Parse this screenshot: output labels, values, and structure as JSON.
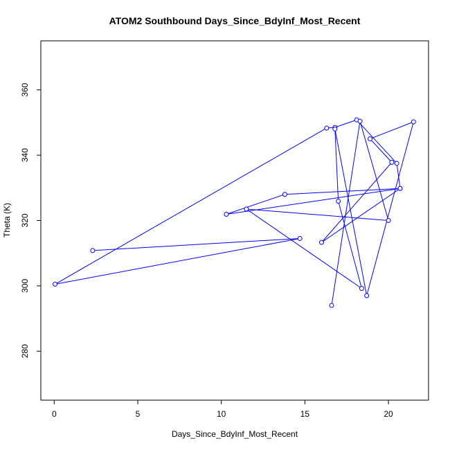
{
  "chart_data": {
    "type": "line",
    "title": "ATOM2 Southbound Days_Since_BdyInf_Most_Recent",
    "xlabel": "Days_Since_BdyInf_Most_Recent",
    "ylabel": "Theta (K)",
    "xlim": [
      -0.8,
      22.4
    ],
    "ylim": [
      265,
      375
    ],
    "xticks": [
      0,
      5,
      10,
      15,
      20
    ],
    "yticks": [
      280,
      300,
      320,
      340,
      360
    ],
    "grid": false,
    "legend": "none",
    "series": [
      {
        "color": "#0000ff",
        "marker": "open-circle",
        "x": [
          2.3,
          14.7,
          0.05,
          16.3,
          16.8,
          18.1,
          20.5,
          20.7,
          10.3,
          13.8,
          20.7,
          16.0,
          20.2,
          18.9,
          21.5,
          18.7,
          16.8,
          17.0,
          18.4,
          11.5,
          20.0,
          18.3,
          16.6
        ],
        "y": [
          310.8,
          314.5,
          300.5,
          348.3,
          348.5,
          350.8,
          337.5,
          329.8,
          321.9,
          328.0,
          329.8,
          313.3,
          337.8,
          345.0,
          350.2,
          297.0,
          348.0,
          325.9,
          299.2,
          323.5,
          320.0,
          350.4,
          294.0
        ]
      }
    ]
  }
}
